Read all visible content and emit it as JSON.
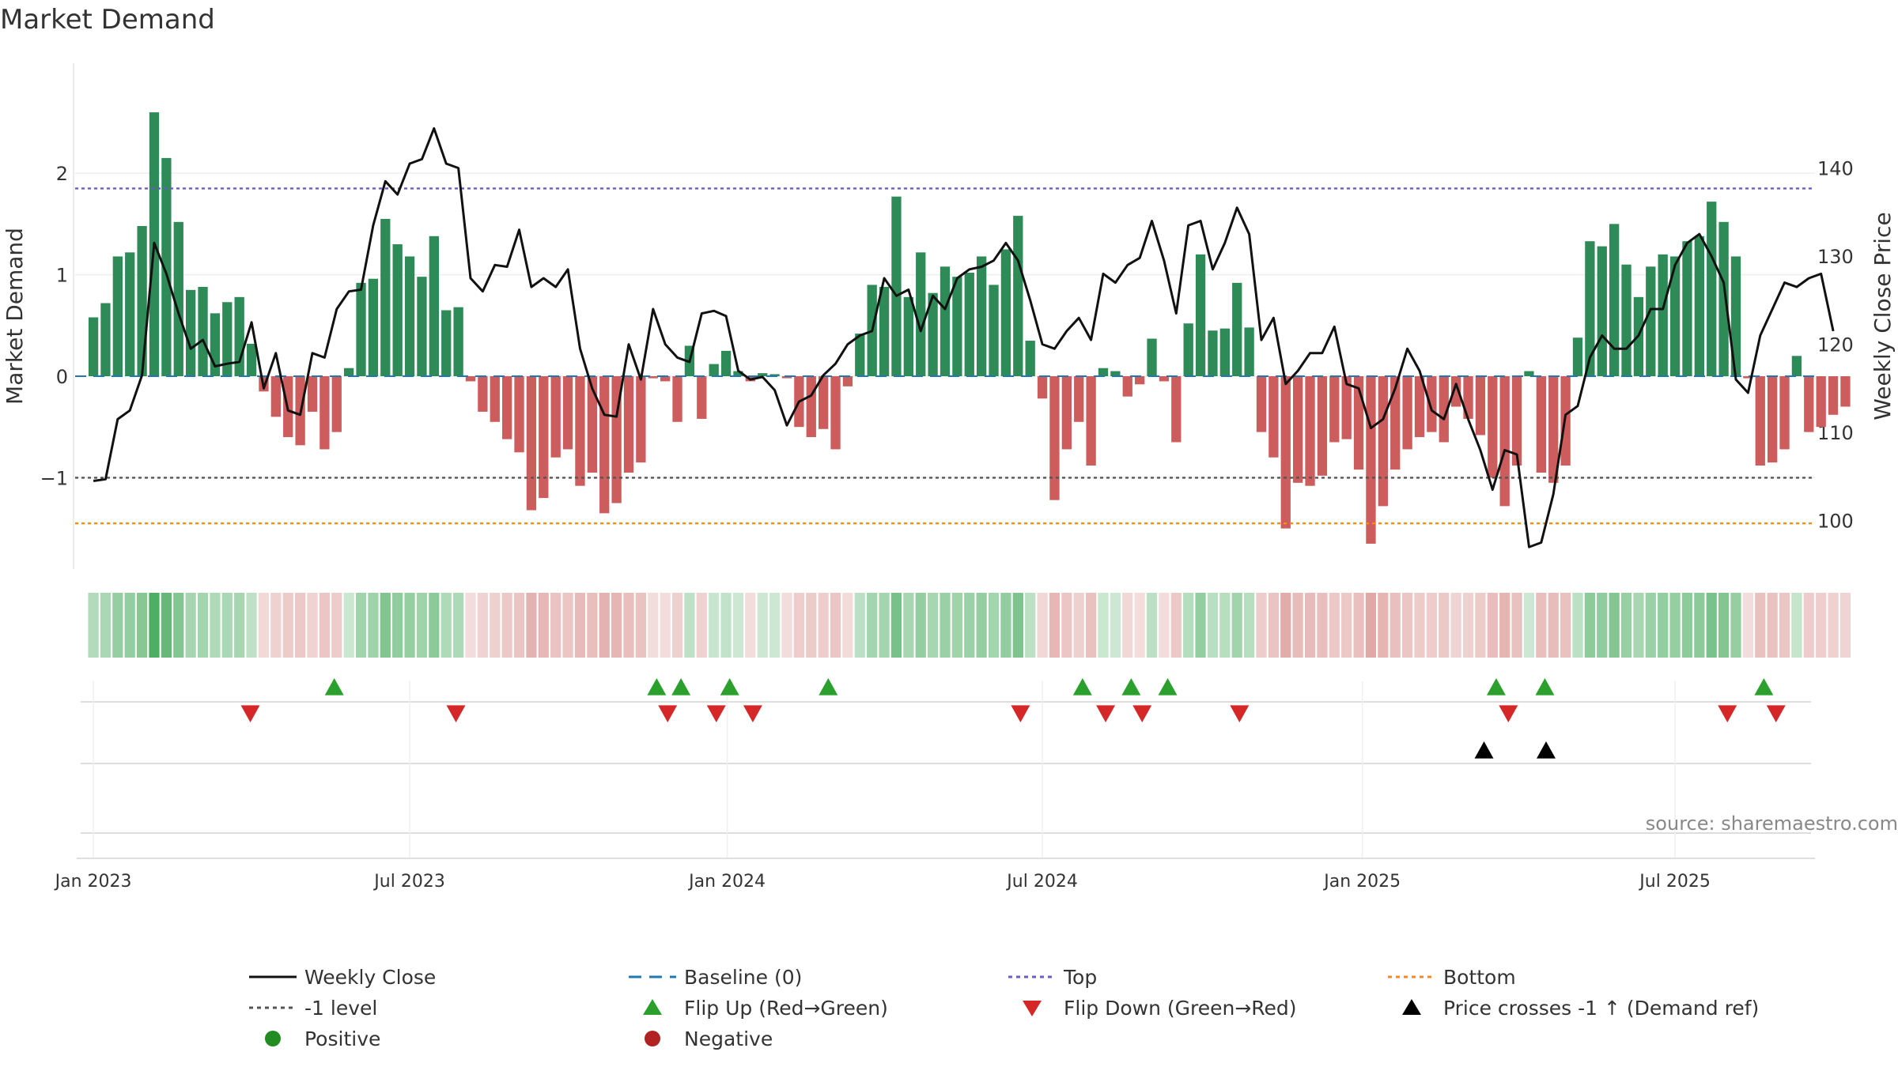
{
  "chart_data": {
    "type": "bar",
    "title": "Market Demand",
    "ylabel": "Market Demand",
    "y2label": "Weekly Close Price",
    "ylim": [
      -1.9,
      2.85
    ],
    "y2lim": [
      94.5,
      149.2
    ],
    "yticks": [
      {
        "v": 2,
        "label": "2"
      },
      {
        "v": 1,
        "label": "1"
      },
      {
        "v": 0,
        "label": "0"
      },
      {
        "v": -1,
        "label": "−1"
      }
    ],
    "y2ticks": [
      {
        "v": 140,
        "label": "140"
      },
      {
        "v": 130,
        "label": "130"
      },
      {
        "v": 120,
        "label": "120"
      },
      {
        "v": 110,
        "label": "110"
      },
      {
        "v": 100,
        "label": "100"
      }
    ],
    "x_range": [
      -1.5,
      141.5
    ],
    "xticks": [
      {
        "week": 0,
        "label": "Jan 2023"
      },
      {
        "week": 26,
        "label": "Jul 2023"
      },
      {
        "week": 52.1,
        "label": "Jan 2024"
      },
      {
        "week": 78,
        "label": "Jul 2024"
      },
      {
        "week": 104.3,
        "label": "Jan 2025"
      },
      {
        "week": 130,
        "label": "Jul 2025"
      }
    ],
    "top_level": 1.85,
    "minus1_level": -1.0,
    "bottom_level": -1.45,
    "demand": [
      0.58,
      0.72,
      1.18,
      1.22,
      1.48,
      2.6,
      2.15,
      1.52,
      0.85,
      0.88,
      0.62,
      0.73,
      0.78,
      0.32,
      -0.15,
      -0.4,
      -0.6,
      -0.68,
      -0.35,
      -0.72,
      -0.55,
      0.08,
      0.92,
      0.96,
      1.55,
      1.3,
      1.18,
      0.98,
      1.38,
      0.65,
      0.68,
      -0.05,
      -0.35,
      -0.45,
      -0.62,
      -0.75,
      -1.32,
      -1.2,
      -0.8,
      -0.72,
      -1.08,
      -0.95,
      -1.35,
      -1.25,
      -0.95,
      -0.85,
      -0.02,
      -0.05,
      -0.45,
      0.3,
      -0.42,
      0.12,
      0.25,
      0.05,
      -0.05,
      0.03,
      0.02,
      -0.02,
      -0.5,
      -0.6,
      -0.52,
      -0.72,
      -0.1,
      0.42,
      0.9,
      0.88,
      1.77,
      0.78,
      1.22,
      0.82,
      1.08,
      0.98,
      1.02,
      1.18,
      0.9,
      1.25,
      1.58,
      0.35,
      -0.22,
      -1.22,
      -0.72,
      -0.45,
      -0.88,
      0.08,
      0.05,
      -0.2,
      -0.08,
      0.37,
      -0.05,
      -0.65,
      0.52,
      1.2,
      0.45,
      0.47,
      0.92,
      0.48,
      -0.55,
      -0.8,
      -1.5,
      -1.05,
      -1.08,
      -0.98,
      -0.65,
      -0.62,
      -0.92,
      -1.65,
      -1.28,
      -0.92,
      -0.72,
      -0.6,
      -0.55,
      -0.65,
      -0.3,
      -0.42,
      -0.58,
      -1.0,
      -1.28,
      -0.88,
      0.05,
      -0.95,
      -1.05,
      -0.88,
      0.38,
      1.33,
      1.28,
      1.5,
      1.1,
      0.78,
      1.08,
      1.2,
      1.18,
      1.33,
      1.38,
      1.72,
      1.52,
      1.18,
      -0.02,
      -0.88,
      -0.85,
      -0.72,
      0.2,
      -0.55,
      -0.5,
      -0.38,
      -0.3
    ],
    "weekly_close": [
      104.5,
      104.7,
      111.5,
      112.5,
      116.5,
      131.5,
      128.0,
      123.5,
      119.5,
      120.5,
      117.5,
      117.8,
      118.0,
      122.5,
      115.0,
      119.0,
      112.5,
      112.0,
      119.0,
      118.5,
      124.0,
      126.0,
      126.2,
      133.5,
      138.5,
      137.0,
      140.5,
      141.0,
      144.5,
      140.5,
      140.0,
      127.5,
      126.0,
      129.0,
      128.8,
      133.0,
      126.5,
      127.5,
      126.5,
      128.5,
      119.5,
      115.0,
      112.0,
      111.8,
      120.0,
      116.0,
      124.0,
      120.0,
      118.5,
      118.0,
      123.5,
      123.8,
      123.2,
      117.0,
      116.0,
      116.3,
      114.8,
      110.8,
      113.5,
      114.2,
      116.5,
      117.8,
      120.0,
      121.0,
      121.5,
      127.5,
      125.5,
      126.2,
      121.5,
      125.5,
      124.0,
      127.5,
      128.5,
      128.8,
      129.5,
      131.5,
      129.5,
      125.0,
      120.0,
      119.5,
      121.5,
      123.0,
      120.5,
      128.0,
      127.0,
      129.0,
      129.8,
      134.0,
      129.5,
      123.5,
      133.5,
      134.0,
      128.5,
      131.5,
      135.5,
      132.5,
      120.5,
      123.0,
      115.5,
      117.0,
      119.0,
      119.0,
      122.0,
      115.5,
      115.0,
      110.5,
      111.5,
      115.0,
      119.5,
      117.0,
      112.5,
      111.5,
      115.5,
      111.5,
      108.0,
      103.5,
      108.0,
      107.5,
      97.0,
      97.5,
      103.0,
      112.0,
      113.0,
      118.5,
      121.0,
      119.5,
      119.5,
      121.0,
      124.0,
      124.0,
      129.0,
      131.5,
      132.5,
      130.0,
      127.0,
      116.0,
      114.5,
      121.0,
      124.0,
      127.0,
      126.5,
      127.5,
      128.0,
      121.5
    ],
    "heat_strip": {
      "positive_color": "#3ba552",
      "negative_color": "#d17c78"
    },
    "flip_up_weeks": [
      19.8,
      46.3,
      48.3,
      52.3,
      60.4,
      81.3,
      85.3,
      88.3,
      115.3,
      119.3,
      137.3
    ],
    "flip_down_weeks": [
      12.9,
      29.8,
      47.2,
      51.2,
      54.2,
      76.2,
      83.2,
      86.2,
      94.2,
      116.3,
      134.3,
      138.3
    ],
    "price_cross_weeks": [
      114.3,
      119.4
    ],
    "colors": {
      "positive_bar": "#2e8b57",
      "negative_bar": "#cd5c5c",
      "close_line": "#111111",
      "baseline": "#1f77b4",
      "top": "#6a5acd",
      "minus1": "#555555",
      "bottom": "#ff8c00",
      "flip_up": "#2ca02c",
      "flip_down": "#d62728",
      "price_cross": "#000000",
      "positive_dot": "#228b22",
      "negative_dot": "#b22222"
    },
    "source": "source: sharemaestro.com",
    "legend": [
      {
        "label": "Weekly Close",
        "kind": "solid",
        "color": "#111111"
      },
      {
        "label": "Baseline (0)",
        "kind": "dash",
        "color": "#1f77b4"
      },
      {
        "label": "Top",
        "kind": "dot",
        "color": "#6a5acd"
      },
      {
        "label": "Bottom",
        "kind": "dot",
        "color": "#ff8c00"
      },
      {
        "label": "-1 level",
        "kind": "dot",
        "color": "#555555"
      },
      {
        "label": "Flip Up (Red→Green)",
        "kind": "tri-up",
        "color": "#2ca02c"
      },
      {
        "label": "Flip Down (Green→Red)",
        "kind": "tri-down",
        "color": "#d62728"
      },
      {
        "label": "Price crosses -1 ↑ (Demand ref)",
        "kind": "tri-up",
        "color": "#000000"
      },
      {
        "label": "Positive",
        "kind": "circle",
        "color": "#228b22"
      },
      {
        "label": "Negative",
        "kind": "circle",
        "color": "#b22222"
      }
    ]
  }
}
